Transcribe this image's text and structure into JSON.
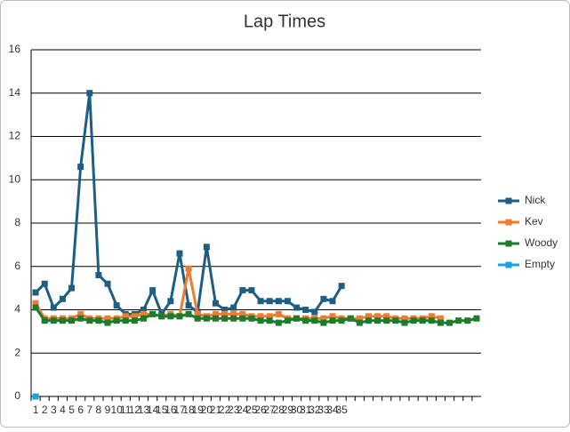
{
  "chart_data": {
    "type": "line",
    "title": "Lap Times",
    "categories": [
      "1",
      "2",
      "3",
      "4",
      "5",
      "6",
      "7",
      "8",
      "9",
      "10",
      "11",
      "12",
      "13",
      "14",
      "15",
      "16",
      "17",
      "18",
      "19",
      "20",
      "21",
      "22",
      "23",
      "24",
      "25",
      "26",
      "27",
      "28",
      "29",
      "30",
      "31",
      "32",
      "33",
      "34",
      "35",
      null,
      null,
      null,
      null,
      null,
      null,
      null,
      null,
      null,
      null,
      null,
      null,
      null,
      null,
      null
    ],
    "series": [
      {
        "name": "Nick",
        "color": "#1d5f82",
        "values": [
          4.8,
          5.2,
          4.1,
          4.5,
          5.0,
          10.6,
          14.0,
          5.6,
          5.2,
          4.2,
          3.8,
          3.8,
          4.0,
          4.9,
          3.8,
          4.4,
          6.6,
          4.2,
          3.9,
          6.9,
          4.3,
          4.0,
          4.1,
          4.9,
          4.9,
          4.4,
          4.4,
          4.4,
          4.4,
          4.1,
          4.0,
          3.9,
          4.5,
          4.4,
          5.1,
          null,
          null,
          null,
          null,
          null,
          null,
          null,
          null,
          null,
          null,
          null,
          null,
          null,
          null,
          null
        ]
      },
      {
        "name": "Kev",
        "color": "#ed7d31",
        "values": [
          4.3,
          3.6,
          3.6,
          3.6,
          3.6,
          3.8,
          3.6,
          3.6,
          3.6,
          3.6,
          3.7,
          3.7,
          3.8,
          3.8,
          3.7,
          3.8,
          3.7,
          5.9,
          3.8,
          3.7,
          3.8,
          3.8,
          3.8,
          3.8,
          3.7,
          3.7,
          3.7,
          3.8,
          3.6,
          3.6,
          3.6,
          3.6,
          3.6,
          3.7,
          3.6,
          3.6,
          3.6,
          3.7,
          3.7,
          3.7,
          3.6,
          3.6,
          3.6,
          3.6,
          3.7,
          3.6,
          null,
          null,
          null,
          null
        ]
      },
      {
        "name": "Woody",
        "color": "#1e7b2c",
        "values": [
          4.1,
          3.5,
          3.5,
          3.5,
          3.5,
          3.6,
          3.5,
          3.5,
          3.4,
          3.5,
          3.5,
          3.5,
          3.6,
          3.8,
          3.7,
          3.7,
          3.7,
          3.8,
          3.6,
          3.6,
          3.6,
          3.6,
          3.6,
          3.6,
          3.6,
          3.5,
          3.5,
          3.4,
          3.5,
          3.6,
          3.5,
          3.5,
          3.4,
          3.5,
          3.5,
          3.6,
          3.4,
          3.5,
          3.5,
          3.5,
          3.5,
          3.4,
          3.5,
          3.5,
          3.5,
          3.4,
          3.4,
          3.5,
          3.5,
          3.6
        ]
      },
      {
        "name": "Empty",
        "color": "#1aa3dc",
        "values": [
          0,
          null,
          null,
          null,
          null,
          null,
          null,
          null,
          null,
          null,
          null,
          null,
          null,
          null,
          null,
          null,
          null,
          null,
          null,
          null,
          null,
          null,
          null,
          null,
          null,
          null,
          null,
          null,
          null,
          null,
          null,
          null,
          null,
          null,
          null,
          null,
          null,
          null,
          null,
          null,
          null,
          null,
          null,
          null,
          null,
          null,
          null,
          null,
          null,
          null
        ]
      }
    ],
    "ylim": [
      0,
      16
    ],
    "yticks": [
      0,
      2,
      4,
      6,
      8,
      10,
      12,
      14,
      16
    ],
    "grid": true,
    "legend": "right"
  }
}
